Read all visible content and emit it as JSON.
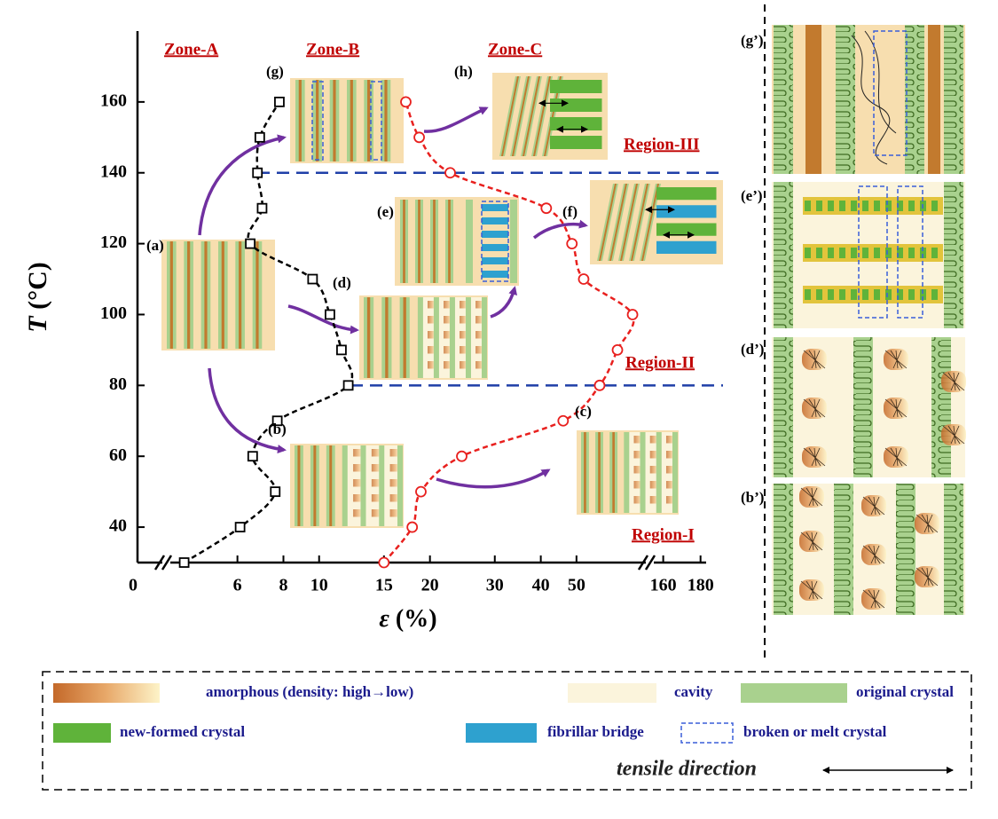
{
  "chart_data": {
    "type": "line",
    "ylabel": {
      "symbol": "T",
      "unit": "(°C)"
    },
    "xlabel": {
      "symbol": "ε",
      "unit": "(%)"
    },
    "ylim": [
      30,
      180
    ],
    "yticks": [
      40,
      60,
      80,
      100,
      120,
      140,
      160
    ],
    "xsegments": [
      {
        "scale": "linear",
        "xlim": [
          0,
          2
        ]
      },
      {
        "scale": "log",
        "xlim": [
          3.9,
          78
        ]
      },
      {
        "scale": "linear",
        "xlim": [
          154,
          183
        ]
      }
    ],
    "xticks": [
      0,
      6,
      8,
      10,
      15,
      20,
      30,
      40,
      50,
      160,
      180
    ],
    "series": [
      {
        "color": "#000000",
        "marker": "square",
        "line": "dashed",
        "x": [
          4.3,
          6.1,
          7.6,
          6.6,
          7.7,
          12.0,
          11.5,
          10.7,
          9.6,
          6.5,
          7.0,
          6.8,
          6.9,
          7.8
        ],
        "values": [
          30,
          40,
          50,
          60,
          70,
          80,
          90,
          100,
          110,
          120,
          130,
          140,
          150,
          160
        ]
      },
      {
        "color": "#e8201e",
        "marker": "circle",
        "line": "dashed",
        "x": [
          15,
          17.9,
          18.9,
          24.4,
          46,
          57.8,
          64.6,
          71,
          52.3,
          48.6,
          41.4,
          22.7,
          18.7,
          17.2
        ],
        "values": [
          30,
          40,
          50,
          60,
          70,
          80,
          90,
          100,
          110,
          120,
          130,
          140,
          150,
          160
        ]
      }
    ],
    "hlines": [
      {
        "y": 140,
        "color": "#1f3fa8"
      },
      {
        "y": 80,
        "color": "#1f3fa8"
      }
    ],
    "zones": [
      "Zone-A",
      "Zone-B",
      "Zone-C"
    ],
    "regions": [
      "Region-I",
      "Region-II",
      "Region-III"
    ],
    "panels": [
      "(a)",
      "(b)",
      "(c)",
      "(d)",
      "(e)",
      "(f)",
      "(g)",
      "(h)"
    ]
  },
  "side_panels": [
    "(g’)",
    "(e’)",
    "(d’)",
    "(b’)"
  ],
  "legend": {
    "items": [
      "amorphous (density: high→low)",
      "cavity",
      "original crystal",
      "new-formed crystal",
      "fibrillar bridge",
      "broken or melt crystal"
    ],
    "direction": "tensile direction"
  }
}
